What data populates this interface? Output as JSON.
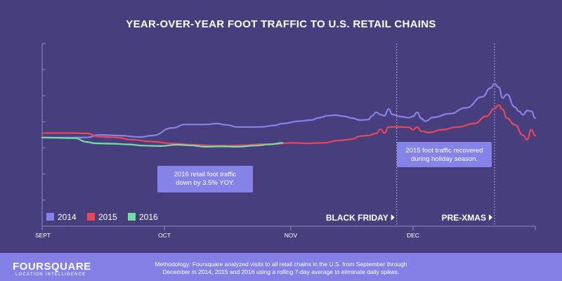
{
  "chart_data": {
    "type": "line",
    "title": "YEAR-OVER-YEAR FOOT TRAFFIC TO U.S. RETAIL CHAINS",
    "x_axis": {
      "range": [
        "2000-09-01",
        "2000-12-31"
      ],
      "ticks": [
        {
          "label": "SEPT",
          "date": "2000-09-01"
        },
        {
          "label": "OCT",
          "date": "2000-10-01"
        },
        {
          "label": "NOV",
          "date": "2000-11-01"
        },
        {
          "label": "DEC",
          "date": "2000-12-01"
        }
      ]
    },
    "y_axis": {
      "range": [
        0,
        100
      ],
      "grid_ticks": [
        0,
        14.3,
        28.6,
        42.9,
        57.1,
        71.4,
        85.7,
        100
      ],
      "show_tick_labels": false
    },
    "series": [
      {
        "name": "2014",
        "color": "#8583e8",
        "points": [
          [
            "2000-09-01",
            48.5
          ],
          [
            "2000-09-08",
            48.5
          ],
          [
            "2000-09-12",
            48.6
          ],
          [
            "2000-09-15",
            50.0
          ],
          [
            "2000-09-20",
            49.6
          ],
          [
            "2000-09-25",
            48.8
          ],
          [
            "2000-09-28",
            49.6
          ],
          [
            "2000-10-03",
            53.8
          ],
          [
            "2000-10-06",
            55.7
          ],
          [
            "2000-10-11",
            55.7
          ],
          [
            "2000-10-14",
            56.2
          ],
          [
            "2000-10-16",
            55.5
          ],
          [
            "2000-10-19",
            54.3
          ],
          [
            "2000-10-22",
            54.3
          ],
          [
            "2000-10-25",
            54.4
          ],
          [
            "2000-10-28",
            55.2
          ],
          [
            "2000-10-30",
            56.2
          ],
          [
            "2000-11-03",
            57.5
          ],
          [
            "2000-11-06",
            58.1
          ],
          [
            "2000-11-08",
            59.4
          ],
          [
            "2000-11-10",
            60.5
          ],
          [
            "2000-11-12",
            60.8
          ],
          [
            "2000-11-14",
            60.2
          ],
          [
            "2000-11-16",
            59.2
          ],
          [
            "2000-11-18",
            58.1
          ],
          [
            "2000-11-20",
            58.4
          ],
          [
            "2000-11-21",
            60.5
          ],
          [
            "2000-11-22",
            62.4
          ],
          [
            "2000-11-23",
            61.1
          ],
          [
            "2000-11-24",
            60.5
          ],
          [
            "2000-11-25",
            64.1
          ],
          [
            "2000-11-26",
            61.1
          ],
          [
            "2000-11-28",
            60.0
          ],
          [
            "2000-11-30",
            59.4
          ],
          [
            "2000-12-01",
            60.2
          ],
          [
            "2000-12-02",
            62.4
          ],
          [
            "2000-12-03",
            59.0
          ],
          [
            "2000-12-04",
            57.5
          ],
          [
            "2000-12-06",
            59.6
          ],
          [
            "2000-12-10",
            61.6
          ],
          [
            "2000-12-14",
            64.8
          ],
          [
            "2000-12-18",
            70.8
          ],
          [
            "2000-12-20",
            75.6
          ],
          [
            "2000-12-21",
            78.0
          ],
          [
            "2000-12-22",
            76.1
          ],
          [
            "2000-12-23",
            70.2
          ],
          [
            "2000-12-24",
            72.2
          ],
          [
            "2000-12-26",
            65.2
          ],
          [
            "2000-12-27",
            62.9
          ],
          [
            "2000-12-28",
            61.0
          ],
          [
            "2000-12-29",
            63.3
          ],
          [
            "2000-12-30",
            63.0
          ],
          [
            "2000-12-31",
            59.2
          ]
        ]
      },
      {
        "name": "2015",
        "color": "#e8465a",
        "points": [
          [
            "2000-09-01",
            51.0
          ],
          [
            "2000-09-08",
            51.0
          ],
          [
            "2000-09-12",
            50.8
          ],
          [
            "2000-09-15",
            49.0
          ],
          [
            "2000-09-19",
            48.6
          ],
          [
            "2000-09-23",
            47.4
          ],
          [
            "2000-09-28",
            46.3
          ],
          [
            "2000-10-03",
            45.3
          ],
          [
            "2000-10-08",
            44.6
          ],
          [
            "2000-10-13",
            44.1
          ],
          [
            "2000-10-17",
            44.1
          ],
          [
            "2000-10-21",
            44.4
          ],
          [
            "2000-10-24",
            44.8
          ],
          [
            "2000-10-28",
            45.0
          ],
          [
            "2000-11-01",
            45.6
          ],
          [
            "2000-11-05",
            45.4
          ],
          [
            "2000-11-09",
            45.6
          ],
          [
            "2000-11-13",
            47.0
          ],
          [
            "2000-11-16",
            47.6
          ],
          [
            "2000-11-18",
            49.3
          ],
          [
            "2000-11-20",
            49.7
          ],
          [
            "2000-11-22",
            50.8
          ],
          [
            "2000-11-23",
            53.0
          ],
          [
            "2000-11-24",
            51.0
          ],
          [
            "2000-11-25",
            54.3
          ],
          [
            "2000-11-28",
            54.3
          ],
          [
            "2000-11-30",
            54.1
          ],
          [
            "2000-12-01",
            52.8
          ],
          [
            "2000-12-02",
            54.3
          ],
          [
            "2000-12-03",
            52.0
          ],
          [
            "2000-12-05",
            51.3
          ],
          [
            "2000-12-08",
            52.8
          ],
          [
            "2000-12-12",
            54.3
          ],
          [
            "2000-12-16",
            56.2
          ],
          [
            "2000-12-19",
            60.2
          ],
          [
            "2000-12-21",
            64.4
          ],
          [
            "2000-12-22",
            66.3
          ],
          [
            "2000-12-23",
            63.9
          ],
          [
            "2000-12-24",
            59.2
          ],
          [
            "2000-12-26",
            55.5
          ],
          [
            "2000-12-28",
            49.8
          ],
          [
            "2000-12-29",
            47.4
          ],
          [
            "2000-12-30",
            52.8
          ],
          [
            "2000-12-31",
            49.6
          ]
        ]
      },
      {
        "name": "2016",
        "color": "#73dea3",
        "points": [
          [
            "2000-09-01",
            48.5
          ],
          [
            "2000-09-09",
            48.2
          ],
          [
            "2000-09-12",
            46.1
          ],
          [
            "2000-09-14",
            45.4
          ],
          [
            "2000-09-18",
            45.2
          ],
          [
            "2000-09-22",
            44.8
          ],
          [
            "2000-09-26",
            44.1
          ],
          [
            "2000-09-30",
            43.9
          ],
          [
            "2000-10-04",
            44.6
          ],
          [
            "2000-10-07",
            44.3
          ],
          [
            "2000-10-11",
            43.5
          ],
          [
            "2000-10-15",
            43.7
          ],
          [
            "2000-10-19",
            43.5
          ],
          [
            "2000-10-23",
            44.1
          ],
          [
            "2000-10-27",
            44.8
          ],
          [
            "2000-10-30",
            45.6
          ]
        ]
      }
    ],
    "markers": [
      {
        "label": "BLACK FRIDAY",
        "date": "2000-11-27",
        "style": "dotted-vertical"
      },
      {
        "label": "PRE-XMAS",
        "date": "2000-12-21",
        "style": "dotted-vertical"
      }
    ],
    "annotations": [
      {
        "text": "2016 retail foot traffic down by 3.5% YOY.",
        "lines": [
          "2016 retail foot traffic",
          "down by 3.5% YOY."
        ]
      },
      {
        "text": "2015 foot traffic recovered during holiday season.",
        "lines": [
          "2015 foot traffic recovered",
          "during holiday season."
        ]
      }
    ],
    "legend": {
      "placement": "bottom-left",
      "entries": [
        "2014",
        "2015",
        "2016"
      ]
    }
  },
  "footer": {
    "logo": "FOURSQUARE",
    "logo_sub": "LOCATION INTELLIGENCE",
    "methodology": "Methodology: Foursquare analyzed visits to all retail chains in the U.S. from September through December in 2014, 2015 and 2016 using a rolling 7-day average to eliminate daily spikes."
  },
  "colors": {
    "background": "#473f7d",
    "footer": "#8580e6",
    "annotation_box": "#8583e8",
    "axis": "#8f8ac0",
    "text": "#ffffff"
  }
}
